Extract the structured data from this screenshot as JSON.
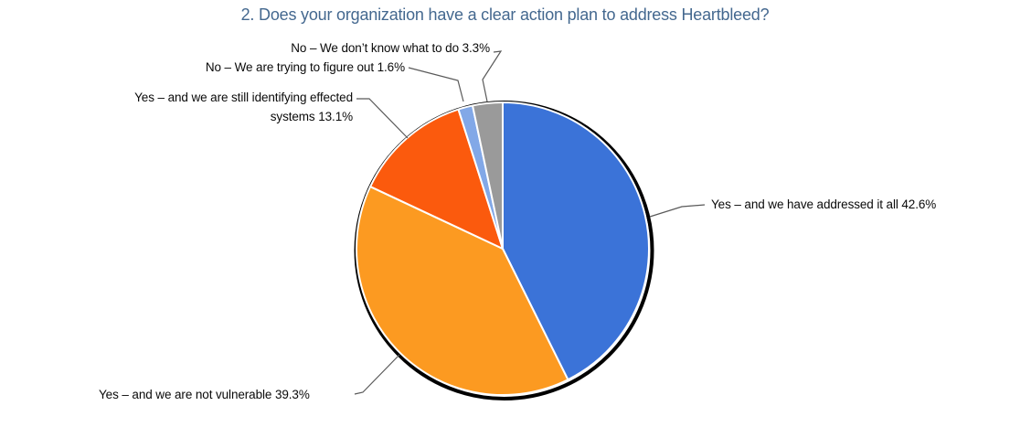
{
  "chart_data": {
    "type": "pie",
    "title": "2. Does your organization have a clear action plan to address Heartbleed?",
    "title_color": "#44688F",
    "start": "12 o'clock",
    "direction": "clockwise",
    "slices": [
      {
        "label": "Yes – and we have addressed it all",
        "pct": 42.6,
        "color": "#3B73D8"
      },
      {
        "label": "Yes – and we are not vulnerable",
        "pct": 39.3,
        "color": "#FC9A21"
      },
      {
        "label": "Yes – and we are still identifying effected systems",
        "pct": 13.1,
        "color": "#FB5A0D"
      },
      {
        "label": "No – We are trying to figure out",
        "pct": 1.6,
        "color": "#82A8E7"
      },
      {
        "label": "No – We don’t know what to do",
        "pct": 3.3,
        "color": "#9A9A9A"
      }
    ],
    "outline_color": "#000000",
    "separator_color": "#ffffff",
    "leader_line_color": "#595959",
    "legend": "none (callout labels with leader lines)"
  },
  "callouts": {
    "addressed": "Yes – and we have addressed it all 42.6%",
    "not_vulnerable": "Yes – and we are not vulnerable 39.3%",
    "identifying_line1": "Yes – and we are still identifying effected",
    "identifying_line2": "systems 13.1%",
    "figure_out": "No – We are trying to figure out 1.6%",
    "dont_know": "No – We don’t know what to do 3.3%"
  }
}
